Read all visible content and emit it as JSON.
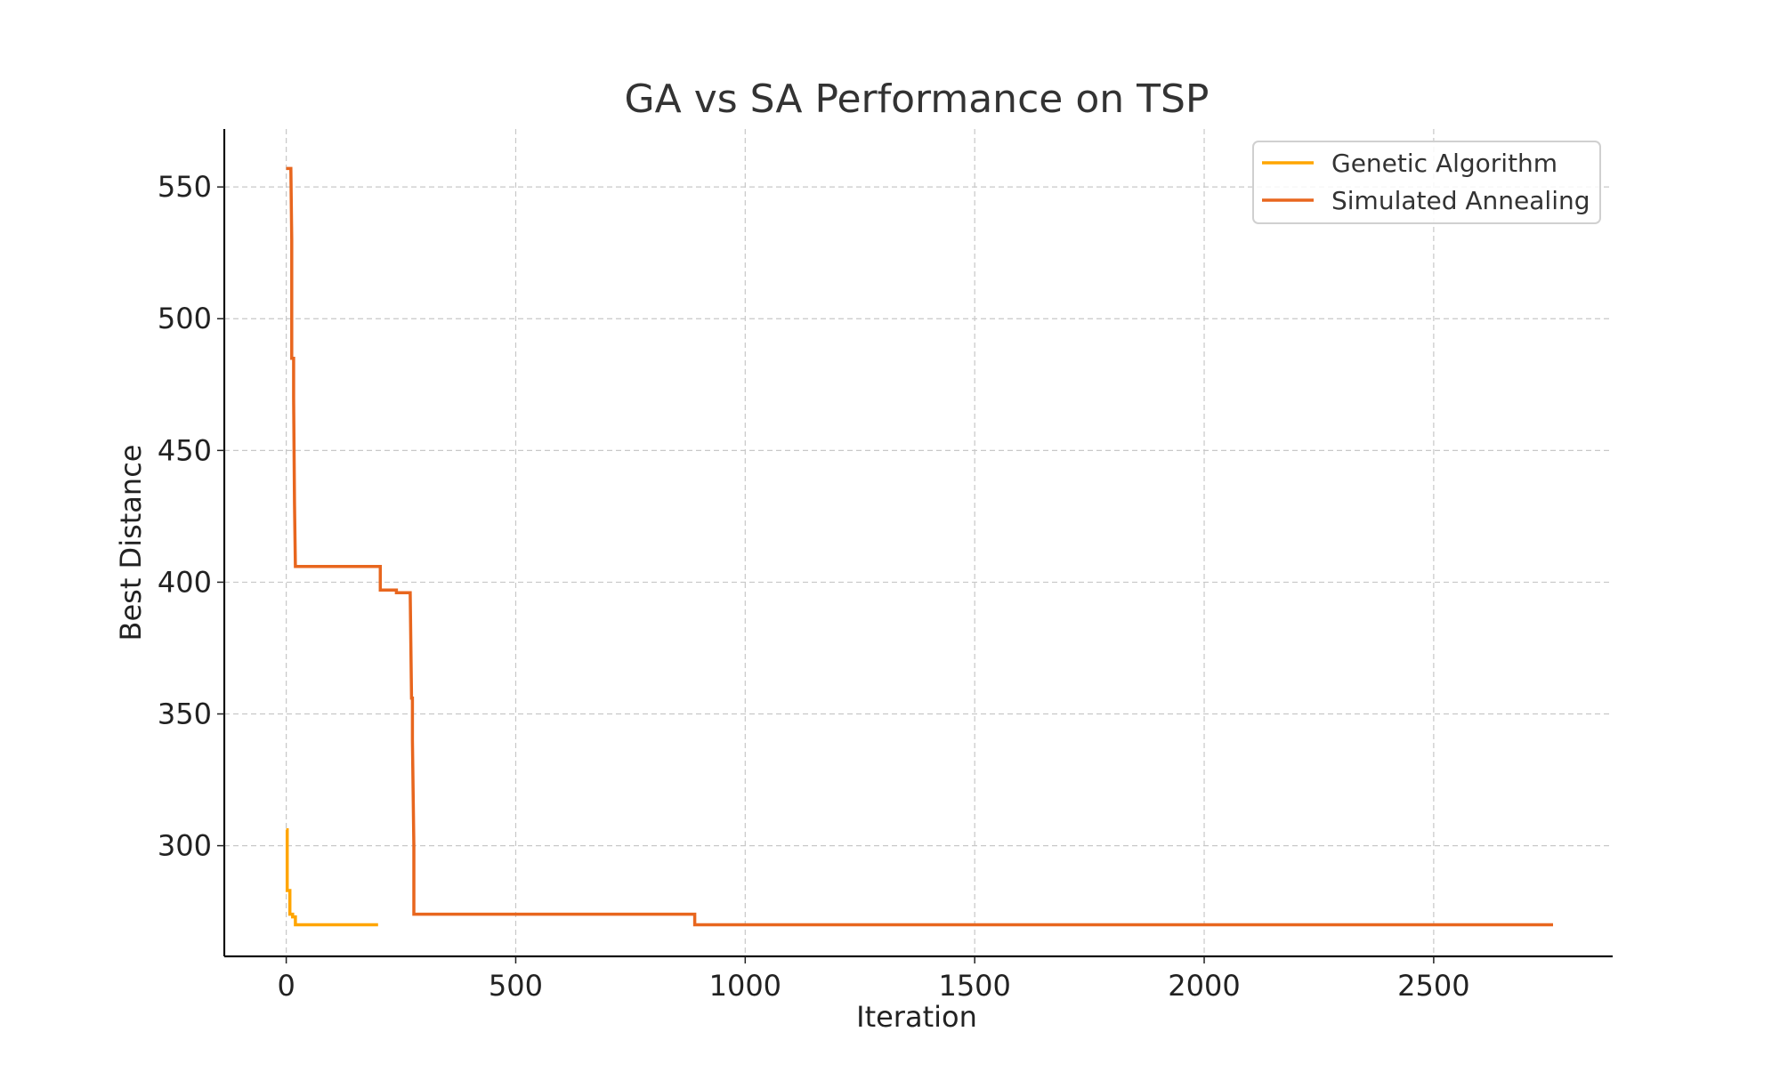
{
  "chart_data": {
    "type": "line",
    "title": "GA vs SA Performance on TSP",
    "xlabel": "Iteration",
    "ylabel": "Best Distance",
    "xlim": [
      -135,
      2890
    ],
    "ylim": [
      258,
      572
    ],
    "xticks": [
      0,
      500,
      1000,
      1500,
      2000,
      2500
    ],
    "yticks": [
      300,
      350,
      400,
      450,
      500,
      550
    ],
    "grid": true,
    "legend_position": "top-right",
    "series": [
      {
        "name": "Genetic Algorithm",
        "color": "#FFA500",
        "x": [
          0,
          2,
          2,
          8,
          8,
          14,
          14,
          20,
          20,
          200
        ],
        "y": [
          306,
          306,
          283,
          283,
          274,
          274,
          273,
          273,
          270,
          270
        ]
      },
      {
        "name": "Simulated Annealing",
        "color": "#E8661E",
        "x": [
          0,
          10,
          12,
          12,
          16,
          16,
          18,
          20,
          20,
          205,
          205,
          240,
          240,
          270,
          273,
          273,
          275,
          275,
          278,
          278,
          890,
          890,
          2760
        ],
        "y": [
          557,
          557,
          530,
          485,
          485,
          470,
          430,
          406,
          406,
          406,
          397,
          397,
          396,
          396,
          356,
          356,
          356,
          340,
          300,
          274,
          274,
          270,
          270
        ]
      }
    ]
  }
}
